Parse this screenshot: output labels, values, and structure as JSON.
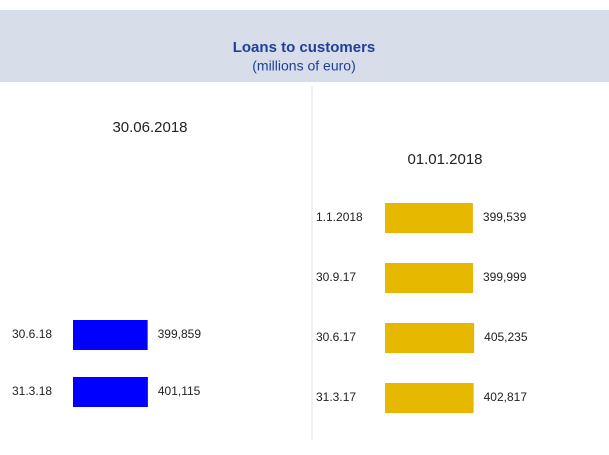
{
  "header": {
    "title": "Loans to customers",
    "subtitle": "(millions of euro)"
  },
  "chart_data": [
    {
      "type": "hbar",
      "title": "30.06.2018",
      "categories": [
        "30.6.18",
        "31.3.18"
      ],
      "values": [
        399859,
        401115
      ],
      "value_labels": [
        "399,859",
        "401,115"
      ],
      "color": "#0000ff",
      "xlim": [
        0,
        450000
      ]
    },
    {
      "type": "hbar",
      "title": "01.01.2018",
      "categories": [
        "1.1.2018",
        "30.9.17",
        "30.6.17",
        "31.3.17"
      ],
      "values": [
        399539,
        399999,
        405235,
        402817
      ],
      "value_labels": [
        "399,539",
        "399,999",
        "405,235",
        "402,817"
      ],
      "color": "#e6b800",
      "xlim": [
        0,
        450000
      ]
    }
  ]
}
